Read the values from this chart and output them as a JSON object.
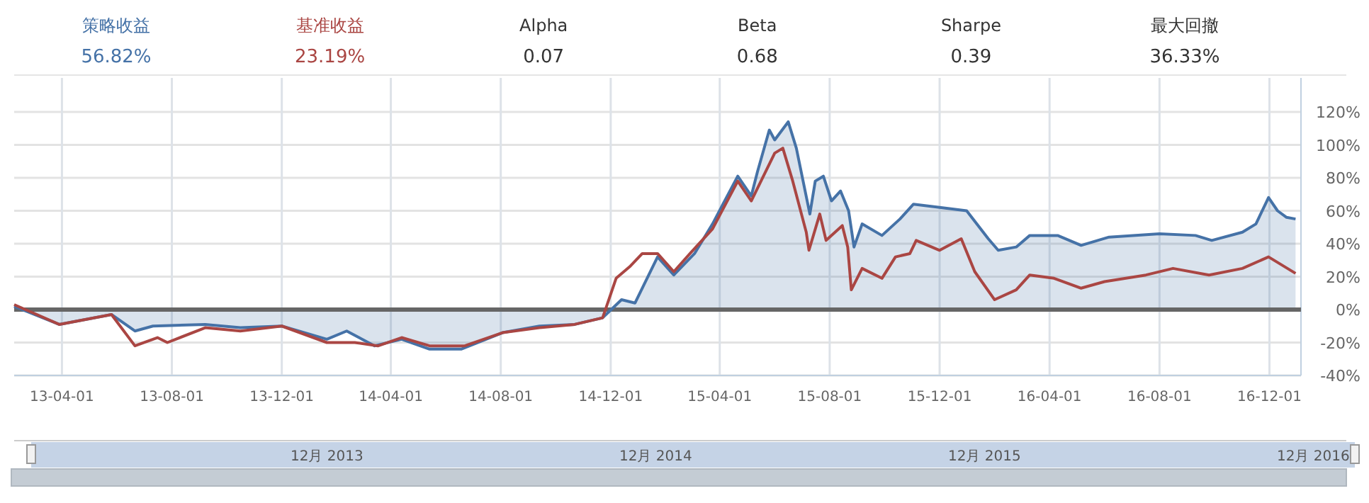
{
  "chart_data": [
    {
      "type": "line",
      "xlim": [
        "2013-02-07",
        "2017-01-05"
      ],
      "ylim": [
        -40,
        120
      ],
      "grid": true,
      "xticks": [
        {
          "value": "2013-04-01",
          "label": "13-04-01"
        },
        {
          "value": "2013-08-01",
          "label": "13-08-01"
        },
        {
          "value": "2013-12-01",
          "label": "13-12-01"
        },
        {
          "value": "2014-04-01",
          "label": "14-04-01"
        },
        {
          "value": "2014-08-01",
          "label": "14-08-01"
        },
        {
          "value": "2014-12-01",
          "label": "14-12-01"
        },
        {
          "value": "2015-04-01",
          "label": "15-04-01"
        },
        {
          "value": "2015-08-01",
          "label": "15-08-01"
        },
        {
          "value": "2015-12-01",
          "label": "15-12-01"
        },
        {
          "value": "2016-04-01",
          "label": "16-04-01"
        },
        {
          "value": "2016-08-01",
          "label": "16-08-01"
        },
        {
          "value": "2016-12-01",
          "label": "16-12-01"
        }
      ],
      "yticks": [
        {
          "value": -40,
          "label": "-40%"
        },
        {
          "value": -20,
          "label": "-20%"
        },
        {
          "value": 0,
          "label": "0%"
        },
        {
          "value": 20,
          "label": "20%"
        },
        {
          "value": 40,
          "label": "40%"
        },
        {
          "value": 60,
          "label": "60%"
        },
        {
          "value": 80,
          "label": "80%"
        },
        {
          "value": 100,
          "label": "100%"
        },
        {
          "value": 120,
          "label": "120%"
        }
      ],
      "ref_lines": [
        {
          "axis": "y",
          "value": 0,
          "color": "#666666"
        }
      ],
      "annotations": [
        "12月 2013",
        "12月 2014",
        "12月 2015",
        "12月 2016"
      ],
      "series": [
        {
          "type": "area",
          "color": "#4572a7",
          "x": [
            "2013-02-07",
            "2013-03-29",
            "2013-05-26",
            "2013-06-21",
            "2013-07-11",
            "2013-09-07",
            "2013-10-16",
            "2013-12-01",
            "2014-01-20",
            "2014-02-11",
            "2014-03-14",
            "2014-04-13",
            "2014-05-14",
            "2014-06-18",
            "2014-08-03",
            "2014-09-13",
            "2014-10-22",
            "2014-11-22",
            "2014-12-13",
            "2014-12-28",
            "2015-01-22",
            "2015-02-09",
            "2015-03-04",
            "2015-03-24",
            "2015-04-21",
            "2015-05-06",
            "2015-05-13",
            "2015-05-26",
            "2015-06-01",
            "2015-06-16",
            "2015-06-25",
            "2015-07-10",
            "2015-07-16",
            "2015-07-25",
            "2015-08-03",
            "2015-08-13",
            "2015-08-22",
            "2015-08-28",
            "2015-09-06",
            "2015-09-28",
            "2015-10-18",
            "2015-11-02",
            "2015-12-01",
            "2015-12-31",
            "2016-01-24",
            "2016-02-04",
            "2016-02-24",
            "2016-03-10",
            "2016-04-10",
            "2016-05-06",
            "2016-06-06",
            "2016-08-01",
            "2016-09-10",
            "2016-09-28",
            "2016-11-01",
            "2016-11-16",
            "2016-11-30",
            "2016-12-10",
            "2016-12-20",
            "2016-12-30"
          ],
          "values": [
            2,
            -9,
            -3,
            -13,
            -10,
            -9,
            -11,
            -10,
            -18,
            -13,
            -22,
            -18,
            -24,
            -24,
            -14,
            -10,
            -9,
            -5,
            6,
            4,
            32,
            21,
            34,
            52,
            81,
            69,
            84,
            109,
            103,
            114,
            98,
            58,
            78,
            81,
            66,
            72,
            60,
            38,
            52,
            45,
            55,
            64,
            62,
            60,
            43,
            36,
            38,
            45,
            45,
            39,
            44,
            46,
            45,
            42,
            47,
            52,
            68,
            60,
            56,
            55
          ]
        },
        {
          "type": "line",
          "color": "#aa4643",
          "x": [
            "2013-02-07",
            "2013-03-29",
            "2013-05-26",
            "2013-06-21",
            "2013-07-16",
            "2013-07-27",
            "2013-09-07",
            "2013-10-16",
            "2013-12-01",
            "2014-01-20",
            "2014-02-20",
            "2014-03-18",
            "2014-04-13",
            "2014-05-14",
            "2014-06-22",
            "2014-08-03",
            "2014-09-13",
            "2014-10-22",
            "2014-11-22",
            "2014-12-07",
            "2014-12-22",
            "2015-01-05",
            "2015-01-22",
            "2015-02-09",
            "2015-02-27",
            "2015-03-24",
            "2015-04-21",
            "2015-05-06",
            "2015-06-01",
            "2015-06-10",
            "2015-06-21",
            "2015-07-06",
            "2015-07-09",
            "2015-07-21",
            "2015-07-28",
            "2015-08-15",
            "2015-08-21",
            "2015-08-25",
            "2015-09-06",
            "2015-09-28",
            "2015-10-13",
            "2015-10-29",
            "2015-11-05",
            "2015-12-01",
            "2015-12-25",
            "2016-01-09",
            "2016-01-31",
            "2016-02-24",
            "2016-03-10",
            "2016-04-06",
            "2016-05-06",
            "2016-06-01",
            "2016-07-17",
            "2016-08-16",
            "2016-09-25",
            "2016-11-01",
            "2016-11-30",
            "2016-12-30"
          ],
          "values": [
            3,
            -9,
            -3,
            -22,
            -17,
            -20,
            -11,
            -13,
            -10,
            -20,
            -20,
            -22,
            -17,
            -22,
            -22,
            -14,
            -11,
            -9,
            -5,
            19,
            26,
            34,
            34,
            23,
            34,
            49,
            78,
            66,
            95,
            98,
            78,
            47,
            36,
            58,
            42,
            51,
            38,
            12,
            25,
            19,
            32,
            34,
            42,
            36,
            43,
            23,
            6,
            12,
            21,
            19,
            13,
            17,
            21,
            25,
            21,
            25,
            32,
            22
          ]
        }
      ]
    },
    {
      "type": "other",
      "annotations": [
        "策略收益",
        "56.82%",
        "基准收益",
        "23.19%",
        "Alpha",
        "0.07",
        "Beta",
        "0.68",
        "Sharpe",
        "0.39",
        "最大回撤",
        "36.33%"
      ]
    }
  ]
}
